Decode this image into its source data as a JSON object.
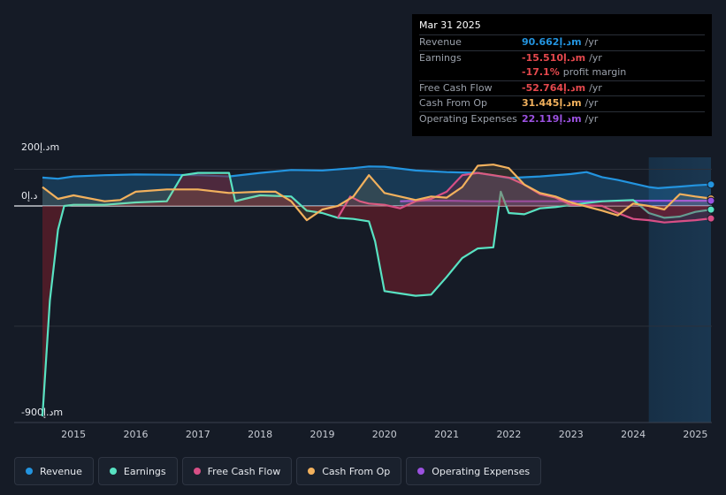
{
  "chart_data": {
    "type": "area",
    "y_unit_labels": {
      "top": "200د.إm",
      "zero": "0د.إ",
      "bottom": "-900د.إm"
    },
    "ylim": [
      -900,
      200
    ],
    "x_ticks": [
      "2015",
      "2016",
      "2017",
      "2018",
      "2019",
      "2020",
      "2021",
      "2022",
      "2023",
      "2024",
      "2025"
    ],
    "forecast_start": 2024.25,
    "series": [
      {
        "name": "Revenue",
        "color": "#2394df",
        "x": [
          2014.5,
          2014.75,
          2015.0,
          2015.5,
          2016.0,
          2016.5,
          2017.0,
          2017.5,
          2018.0,
          2018.5,
          2019.0,
          2019.5,
          2019.75,
          2020.0,
          2020.5,
          2021.0,
          2021.5,
          2022.0,
          2022.5,
          2023.0,
          2023.25,
          2023.5,
          2023.75,
          2024.0,
          2024.25,
          2024.4,
          2024.75,
          2025.0,
          2025.25
        ],
        "y": [
          120,
          115,
          125,
          130,
          133,
          132,
          130,
          125,
          140,
          152,
          150,
          160,
          167,
          166,
          150,
          143,
          140,
          118,
          125,
          135,
          143,
          122,
          110,
          95,
          80,
          75,
          82,
          87,
          90.662
        ]
      },
      {
        "name": "Earnings",
        "color": "#58e2c2",
        "x": [
          2014.5,
          2014.62,
          2014.75,
          2014.85,
          2015.0,
          2015.5,
          2016.0,
          2016.5,
          2016.75,
          2017.0,
          2017.5,
          2017.6,
          2017.75,
          2018.0,
          2018.5,
          2018.75,
          2019.0,
          2019.25,
          2019.5,
          2019.75,
          2019.85,
          2020.0,
          2020.25,
          2020.5,
          2020.75,
          2021.0,
          2021.25,
          2021.5,
          2021.75,
          2021.87,
          2022.0,
          2022.25,
          2022.5,
          2022.75,
          2023.0,
          2023.5,
          2024.0,
          2024.25,
          2024.5,
          2024.75,
          2025.0,
          2025.25
        ],
        "y": [
          -890,
          -400,
          -100,
          0,
          5,
          5,
          15,
          20,
          130,
          140,
          140,
          20,
          30,
          45,
          40,
          -20,
          -30,
          -50,
          -55,
          -65,
          -150,
          -360,
          -370,
          -380,
          -375,
          -300,
          -220,
          -180,
          -175,
          60,
          -30,
          -35,
          -10,
          -5,
          5,
          20,
          25,
          -30,
          -50,
          -45,
          -25,
          -15.51
        ]
      },
      {
        "name": "Free Cash Flow",
        "color": "#d84f86",
        "x": [
          2019.25,
          2019.45,
          2019.6,
          2019.75,
          2020.0,
          2020.25,
          2020.5,
          2020.75,
          2021.0,
          2021.25,
          2021.5,
          2021.75,
          2022.0,
          2022.25,
          2022.5,
          2022.75,
          2023.0,
          2023.5,
          2023.75,
          2024.0,
          2024.25,
          2024.5,
          2024.75,
          2025.0,
          2025.25
        ],
        "y": [
          -50,
          40,
          20,
          10,
          5,
          -10,
          20,
          30,
          60,
          130,
          140,
          130,
          120,
          90,
          50,
          35,
          5,
          0,
          -30,
          -55,
          -60,
          -70,
          -65,
          -60,
          -52.764
        ]
      },
      {
        "name": "Cash From Op",
        "color": "#f2b15d",
        "x": [
          2014.5,
          2014.75,
          2015.0,
          2015.5,
          2015.75,
          2016.0,
          2016.5,
          2017.0,
          2017.5,
          2018.0,
          2018.25,
          2018.5,
          2018.75,
          2019.0,
          2019.25,
          2019.5,
          2019.75,
          2020.0,
          2020.5,
          2020.75,
          2021.0,
          2021.25,
          2021.5,
          2021.75,
          2022.0,
          2022.25,
          2022.5,
          2022.75,
          2023.0,
          2023.5,
          2023.75,
          2024.0,
          2024.25,
          2024.5,
          2024.75,
          2025.0,
          2025.25
        ],
        "y": [
          80,
          30,
          45,
          20,
          25,
          60,
          70,
          70,
          55,
          60,
          60,
          20,
          -60,
          -15,
          0,
          40,
          130,
          55,
          25,
          40,
          35,
          80,
          170,
          175,
          160,
          90,
          55,
          40,
          15,
          -20,
          -40,
          10,
          0,
          -15,
          50,
          40,
          31.445
        ]
      },
      {
        "name": "Operating Expenses",
        "color": "#9b51e0",
        "x": [
          2020.25,
          2020.5,
          2021.0,
          2021.5,
          2022.0,
          2022.5,
          2023.0,
          2023.5,
          2024.0,
          2024.5,
          2025.0,
          2025.25
        ],
        "y": [
          20,
          22,
          22,
          20,
          20,
          20,
          20,
          20,
          22,
          22,
          22,
          22.119
        ]
      }
    ],
    "tooltip": {
      "date": "Mar 31 2025",
      "rows": [
        {
          "label": "Revenue",
          "value": "90.662د.إm",
          "unit": "/yr",
          "color": "#2394df"
        },
        {
          "label": "Earnings",
          "value": "-15.510د.إm",
          "unit": "/yr",
          "color": "#e5484d"
        },
        {
          "label": "",
          "value": "-17.1%",
          "unit": "profit margin",
          "color": "#e5484d"
        },
        {
          "label": "Free Cash Flow",
          "value": "-52.764د.إm",
          "unit": "/yr",
          "color": "#e5484d"
        },
        {
          "label": "Cash From Op",
          "value": "31.445د.إm",
          "unit": "/yr",
          "color": "#f2b15d"
        },
        {
          "label": "Operating Expenses",
          "value": "22.119د.إm",
          "unit": "/yr",
          "color": "#9b51e0"
        }
      ]
    },
    "legend": [
      "Revenue",
      "Earnings",
      "Free Cash Flow",
      "Cash From Op",
      "Operating Expenses"
    ]
  }
}
